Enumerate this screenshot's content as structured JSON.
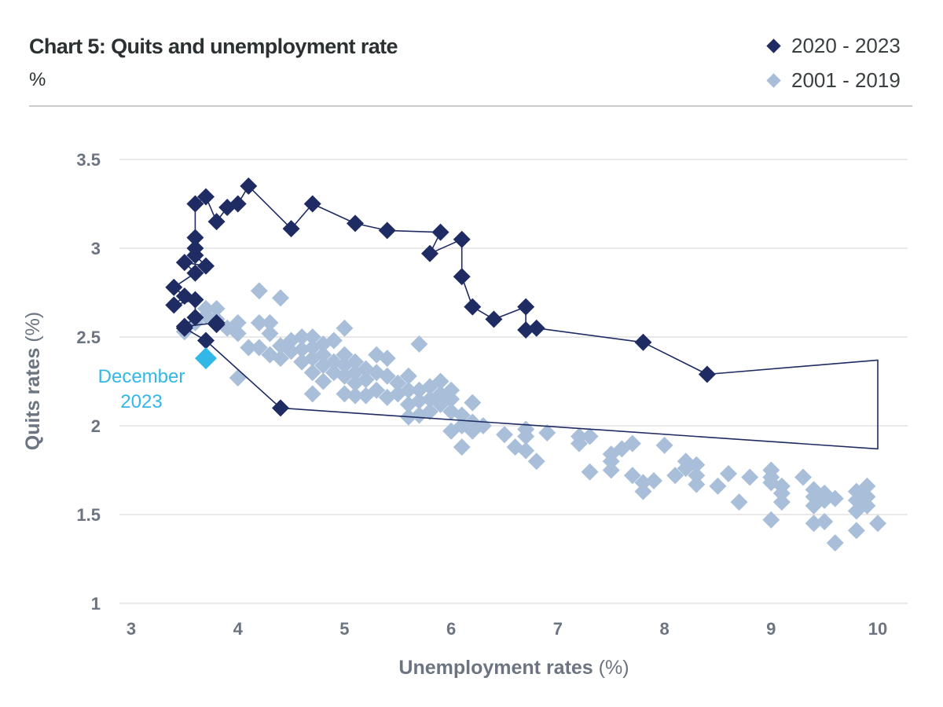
{
  "chart_data": {
    "type": "scatter",
    "title": "Chart 5: Quits and unemployment rate",
    "subtitle": "%",
    "xlabel": "Unemployment rates",
    "xlabel_unit": "(%)",
    "ylabel": "Quits rates",
    "ylabel_unit": "(%)",
    "xlim": [
      3,
      10
    ],
    "ylim": [
      1,
      3.5
    ],
    "x_ticks": [
      "3",
      "4",
      "5",
      "6",
      "7",
      "8",
      "9",
      "10"
    ],
    "y_ticks": [
      "1",
      "1.5",
      "2",
      "2.5",
      "3",
      "3.5"
    ],
    "grid": "horizontal",
    "legend_position": "top-right",
    "colors": {
      "recent": "#1f2b63",
      "historical": "#a9bfd9",
      "highlight": "#33b7e6",
      "grid": "#dcdcdc",
      "tick": "#6b7480"
    },
    "series": [
      {
        "name": "2020 - 2023",
        "color": "#1f2b63",
        "connected": true,
        "points": [
          [
            3.5,
            2.55
          ],
          [
            3.7,
            2.48
          ],
          [
            4.4,
            2.1
          ],
          [
            10.0,
            1.87,
            "no-marker"
          ],
          [
            10.0,
            2.37,
            "no-marker"
          ],
          [
            8.4,
            2.29
          ],
          [
            7.8,
            2.47
          ],
          [
            6.8,
            2.55
          ],
          [
            6.7,
            2.54
          ],
          [
            6.7,
            2.67
          ],
          [
            6.4,
            2.6
          ],
          [
            6.2,
            2.67
          ],
          [
            6.1,
            2.84
          ],
          [
            6.1,
            3.05
          ],
          [
            5.8,
            2.97
          ],
          [
            5.9,
            3.09
          ],
          [
            5.4,
            3.1
          ],
          [
            5.1,
            3.14
          ],
          [
            4.7,
            3.25
          ],
          [
            4.5,
            3.11
          ],
          [
            4.1,
            3.35
          ],
          [
            4.0,
            3.25
          ],
          [
            3.9,
            3.23
          ],
          [
            3.8,
            3.15
          ],
          [
            3.7,
            3.29
          ],
          [
            3.6,
            3.25
          ],
          [
            3.6,
            3.06
          ],
          [
            3.6,
            3.0
          ],
          [
            3.6,
            2.96
          ],
          [
            3.7,
            2.9
          ],
          [
            3.5,
            2.92
          ],
          [
            3.6,
            2.86
          ],
          [
            3.4,
            2.78
          ],
          [
            3.5,
            2.73
          ],
          [
            3.4,
            2.68
          ],
          [
            3.6,
            2.71
          ],
          [
            3.6,
            2.61
          ],
          [
            3.5,
            2.56
          ],
          [
            3.8,
            2.58
          ],
          [
            3.8,
            2.57
          ]
        ]
      },
      {
        "name": "2001 - 2019",
        "color": "#a9bfd9",
        "connected": false,
        "points": [
          [
            3.5,
            2.53
          ],
          [
            3.6,
            2.58
          ],
          [
            3.7,
            2.62
          ],
          [
            3.7,
            2.66
          ],
          [
            3.8,
            2.66
          ],
          [
            3.8,
            2.6
          ],
          [
            3.9,
            2.55
          ],
          [
            4.0,
            2.58
          ],
          [
            4.0,
            2.52
          ],
          [
            4.1,
            2.44
          ],
          [
            4.0,
            2.27
          ],
          [
            4.2,
            2.76
          ],
          [
            4.4,
            2.72
          ],
          [
            4.2,
            2.58
          ],
          [
            4.3,
            2.58
          ],
          [
            4.3,
            2.52
          ],
          [
            4.2,
            2.44
          ],
          [
            4.3,
            2.4
          ],
          [
            4.4,
            2.45
          ],
          [
            4.4,
            2.38
          ],
          [
            4.5,
            2.42
          ],
          [
            4.5,
            2.48
          ],
          [
            4.6,
            2.5
          ],
          [
            4.6,
            2.43
          ],
          [
            4.6,
            2.36
          ],
          [
            4.7,
            2.5
          ],
          [
            4.7,
            2.44
          ],
          [
            4.7,
            2.38
          ],
          [
            4.8,
            2.46
          ],
          [
            4.8,
            2.4
          ],
          [
            4.8,
            2.34
          ],
          [
            4.7,
            2.3
          ],
          [
            4.7,
            2.18
          ],
          [
            4.9,
            2.48
          ],
          [
            4.9,
            2.36
          ],
          [
            4.9,
            2.3
          ],
          [
            4.8,
            2.25
          ],
          [
            5.0,
            2.55
          ],
          [
            5.0,
            2.4
          ],
          [
            5.0,
            2.34
          ],
          [
            5.0,
            2.28
          ],
          [
            5.0,
            2.18
          ],
          [
            5.1,
            2.36
          ],
          [
            5.1,
            2.3
          ],
          [
            5.1,
            2.24
          ],
          [
            5.1,
            2.17
          ],
          [
            5.2,
            2.32
          ],
          [
            5.2,
            2.26
          ],
          [
            5.2,
            2.17
          ],
          [
            5.3,
            2.4
          ],
          [
            5.3,
            2.3
          ],
          [
            5.3,
            2.2
          ],
          [
            5.4,
            2.38
          ],
          [
            5.4,
            2.28
          ],
          [
            5.4,
            2.16
          ],
          [
            5.5,
            2.24
          ],
          [
            5.5,
            2.18
          ],
          [
            5.6,
            2.28
          ],
          [
            5.6,
            2.2
          ],
          [
            5.6,
            2.12
          ],
          [
            5.6,
            2.05
          ],
          [
            5.7,
            2.46
          ],
          [
            5.7,
            2.2
          ],
          [
            5.7,
            2.14
          ],
          [
            5.7,
            2.06
          ],
          [
            5.8,
            2.22
          ],
          [
            5.8,
            2.15
          ],
          [
            5.8,
            2.08
          ],
          [
            5.9,
            2.25
          ],
          [
            5.9,
            2.18
          ],
          [
            5.9,
            2.12
          ],
          [
            6.0,
            2.2
          ],
          [
            6.0,
            2.15
          ],
          [
            6.0,
            2.08
          ],
          [
            6.0,
            1.97
          ],
          [
            6.1,
            2.06
          ],
          [
            6.1,
            2.0
          ],
          [
            6.1,
            1.88
          ],
          [
            6.2,
            2.13
          ],
          [
            6.2,
            2.02
          ],
          [
            6.2,
            1.97
          ],
          [
            6.3,
            2.0
          ],
          [
            6.5,
            1.95
          ],
          [
            6.6,
            1.88
          ],
          [
            6.7,
            1.98
          ],
          [
            6.7,
            1.94
          ],
          [
            6.7,
            1.86
          ],
          [
            6.8,
            1.8
          ],
          [
            6.9,
            1.96
          ],
          [
            7.2,
            1.94
          ],
          [
            7.2,
            1.9
          ],
          [
            7.3,
            1.94
          ],
          [
            7.3,
            1.74
          ],
          [
            7.5,
            1.84
          ],
          [
            7.5,
            1.8
          ],
          [
            7.5,
            1.75
          ],
          [
            7.6,
            1.87
          ],
          [
            7.7,
            1.9
          ],
          [
            7.7,
            1.72
          ],
          [
            7.8,
            1.68
          ],
          [
            7.8,
            1.63
          ],
          [
            7.9,
            1.69
          ],
          [
            8.0,
            1.89
          ],
          [
            8.1,
            1.72
          ],
          [
            8.2,
            1.8
          ],
          [
            8.2,
            1.76
          ],
          [
            8.3,
            1.78
          ],
          [
            8.3,
            1.72
          ],
          [
            8.3,
            1.67
          ],
          [
            8.5,
            1.66
          ],
          [
            8.6,
            1.73
          ],
          [
            8.7,
            1.57
          ],
          [
            8.8,
            1.71
          ],
          [
            9.0,
            1.75
          ],
          [
            9.0,
            1.71
          ],
          [
            9.0,
            1.68
          ],
          [
            9.0,
            1.47
          ],
          [
            9.1,
            1.66
          ],
          [
            9.1,
            1.62
          ],
          [
            9.1,
            1.57
          ],
          [
            9.3,
            1.71
          ],
          [
            9.4,
            1.64
          ],
          [
            9.4,
            1.6
          ],
          [
            9.4,
            1.55
          ],
          [
            9.4,
            1.45
          ],
          [
            9.5,
            1.62
          ],
          [
            9.5,
            1.58
          ],
          [
            9.5,
            1.46
          ],
          [
            9.6,
            1.59
          ],
          [
            9.6,
            1.34
          ],
          [
            9.8,
            1.63
          ],
          [
            9.8,
            1.58
          ],
          [
            9.8,
            1.52
          ],
          [
            9.8,
            1.41
          ],
          [
            9.9,
            1.66
          ],
          [
            9.9,
            1.6
          ],
          [
            9.9,
            1.55
          ],
          [
            10.0,
            1.45
          ]
        ]
      }
    ],
    "highlight": {
      "label_line1": "December",
      "label_line2": "2023",
      "point": [
        3.7,
        2.38
      ]
    }
  }
}
